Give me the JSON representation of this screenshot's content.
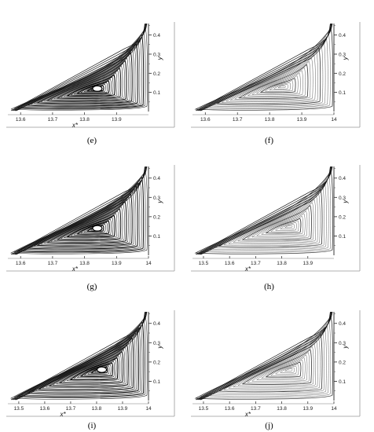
{
  "panels": [
    {
      "caption": "(e)",
      "x_ticks": [
        "13.6",
        "13.7",
        "13.8",
        "13.9"
      ],
      "y_ticks": [
        "0.1",
        "0.2",
        "0.3",
        "0.4"
      ],
      "xlabel": "x*",
      "ylabel": "y",
      "xlim": [
        13.57,
        14.0
      ],
      "ylim": [
        0,
        0.46
      ],
      "xticks": [
        13.6,
        13.7,
        13.8,
        13.9
      ],
      "vortex_center": [
        13.84,
        0.12
      ],
      "vortex_style": "dense"
    },
    {
      "caption": "(f)",
      "x_ticks": [
        "13.6",
        "13.7",
        "13.8",
        "13.9",
        "14"
      ],
      "y_ticks": [
        "0.1",
        "0.2",
        "0.3",
        "0.4"
      ],
      "xlabel": "",
      "ylabel": "y",
      "xlim": [
        13.57,
        14.0
      ],
      "ylim": [
        0,
        0.46
      ],
      "xticks": [
        13.6,
        13.7,
        13.8,
        13.9,
        14.0
      ],
      "vortex_center": [
        13.84,
        0.13
      ],
      "vortex_style": "light"
    },
    {
      "caption": "(g)",
      "x_ticks": [
        "13.6",
        "13.7",
        "13.8",
        "13.9",
        "14"
      ],
      "y_ticks": [
        "0.1",
        "0.2",
        "0.3",
        "0.4"
      ],
      "xlabel": "x*",
      "ylabel": "y",
      "xlim": [
        13.57,
        14.0
      ],
      "ylim": [
        0,
        0.46
      ],
      "xticks": [
        13.6,
        13.7,
        13.8,
        13.9,
        14.0
      ],
      "vortex_center": [
        13.84,
        0.14
      ],
      "vortex_style": "dense"
    },
    {
      "caption": "(h)",
      "x_ticks": [
        "13.5",
        "13.6",
        "13.7",
        "13.8",
        "13.9"
      ],
      "y_ticks": [
        "0.1",
        "0.2",
        "0.3",
        "0.4"
      ],
      "xlabel": "x*",
      "ylabel": "y",
      "xlim": [
        13.47,
        14.0
      ],
      "ylim": [
        0,
        0.46
      ],
      "xticks": [
        13.5,
        13.6,
        13.7,
        13.8,
        13.9
      ],
      "vortex_center": [
        13.83,
        0.15
      ],
      "vortex_style": "light"
    },
    {
      "caption": "(i)",
      "x_ticks": [
        "13.5",
        "13.6",
        "13.7",
        "13.8",
        "13.9",
        "14"
      ],
      "y_ticks": [
        "0.1",
        "0.2",
        "0.3",
        "0.4"
      ],
      "xlabel": "x*",
      "ylabel": "y",
      "xlim": [
        13.47,
        14.0
      ],
      "ylim": [
        0,
        0.46
      ],
      "xticks": [
        13.5,
        13.6,
        13.7,
        13.8,
        13.9,
        14.0
      ],
      "vortex_center": [
        13.82,
        0.16
      ],
      "vortex_style": "dense"
    },
    {
      "caption": "(j)",
      "x_ticks": [
        "13.5",
        "13.6",
        "13.7",
        "13.8",
        "13.9",
        "14"
      ],
      "y_ticks": [
        "0.1",
        "0.2",
        "0.3",
        "0.4"
      ],
      "xlabel": "x*",
      "ylabel": "y",
      "xlim": [
        13.47,
        14.0
      ],
      "ylim": [
        0,
        0.46
      ],
      "xticks": [
        13.5,
        13.6,
        13.7,
        13.8,
        13.9,
        14.0
      ],
      "vortex_center": [
        13.83,
        0.16
      ],
      "vortex_style": "light"
    }
  ]
}
